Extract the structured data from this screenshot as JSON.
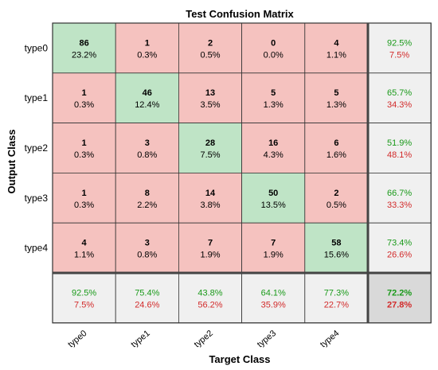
{
  "chart_data": {
    "type": "heatmap",
    "title": "Test Confusion Matrix",
    "xlabel": "Target Class",
    "ylabel": "Output Class",
    "row_labels": [
      "type0",
      "type1",
      "type2",
      "type3",
      "type4"
    ],
    "col_labels": [
      "type0",
      "type1",
      "type2",
      "type3",
      "type4"
    ],
    "counts": [
      [
        86,
        1,
        2,
        0,
        4
      ],
      [
        1,
        46,
        13,
        5,
        5
      ],
      [
        1,
        3,
        28,
        16,
        6
      ],
      [
        1,
        8,
        14,
        50,
        2
      ],
      [
        4,
        3,
        7,
        7,
        58
      ]
    ],
    "percents": [
      [
        "23.2%",
        "0.3%",
        "0.5%",
        "0.0%",
        "1.1%"
      ],
      [
        "0.3%",
        "12.4%",
        "3.5%",
        "1.3%",
        "1.3%"
      ],
      [
        "0.3%",
        "0.8%",
        "7.5%",
        "4.3%",
        "1.6%"
      ],
      [
        "0.3%",
        "2.2%",
        "3.8%",
        "13.5%",
        "0.5%"
      ],
      [
        "1.1%",
        "0.8%",
        "1.9%",
        "1.9%",
        "15.6%"
      ]
    ],
    "row_summary": [
      {
        "correct": "92.5%",
        "wrong": "7.5%"
      },
      {
        "correct": "65.7%",
        "wrong": "34.3%"
      },
      {
        "correct": "51.9%",
        "wrong": "48.1%"
      },
      {
        "correct": "66.7%",
        "wrong": "33.3%"
      },
      {
        "correct": "73.4%",
        "wrong": "26.6%"
      }
    ],
    "col_summary": [
      {
        "correct": "92.5%",
        "wrong": "7.5%"
      },
      {
        "correct": "75.4%",
        "wrong": "24.6%"
      },
      {
        "correct": "43.8%",
        "wrong": "56.2%"
      },
      {
        "correct": "64.1%",
        "wrong": "35.9%"
      },
      {
        "correct": "77.3%",
        "wrong": "22.7%"
      }
    ],
    "overall": {
      "correct": "72.2%",
      "wrong": "27.8%"
    },
    "colors": {
      "diagonal": "#bfe4c6",
      "off_diagonal": "#f5c2bf",
      "summary": "#f0f0f0",
      "overall": "#d9d9d9",
      "correct_text": "#1a9a1a",
      "wrong_text": "#d22b2b"
    }
  }
}
